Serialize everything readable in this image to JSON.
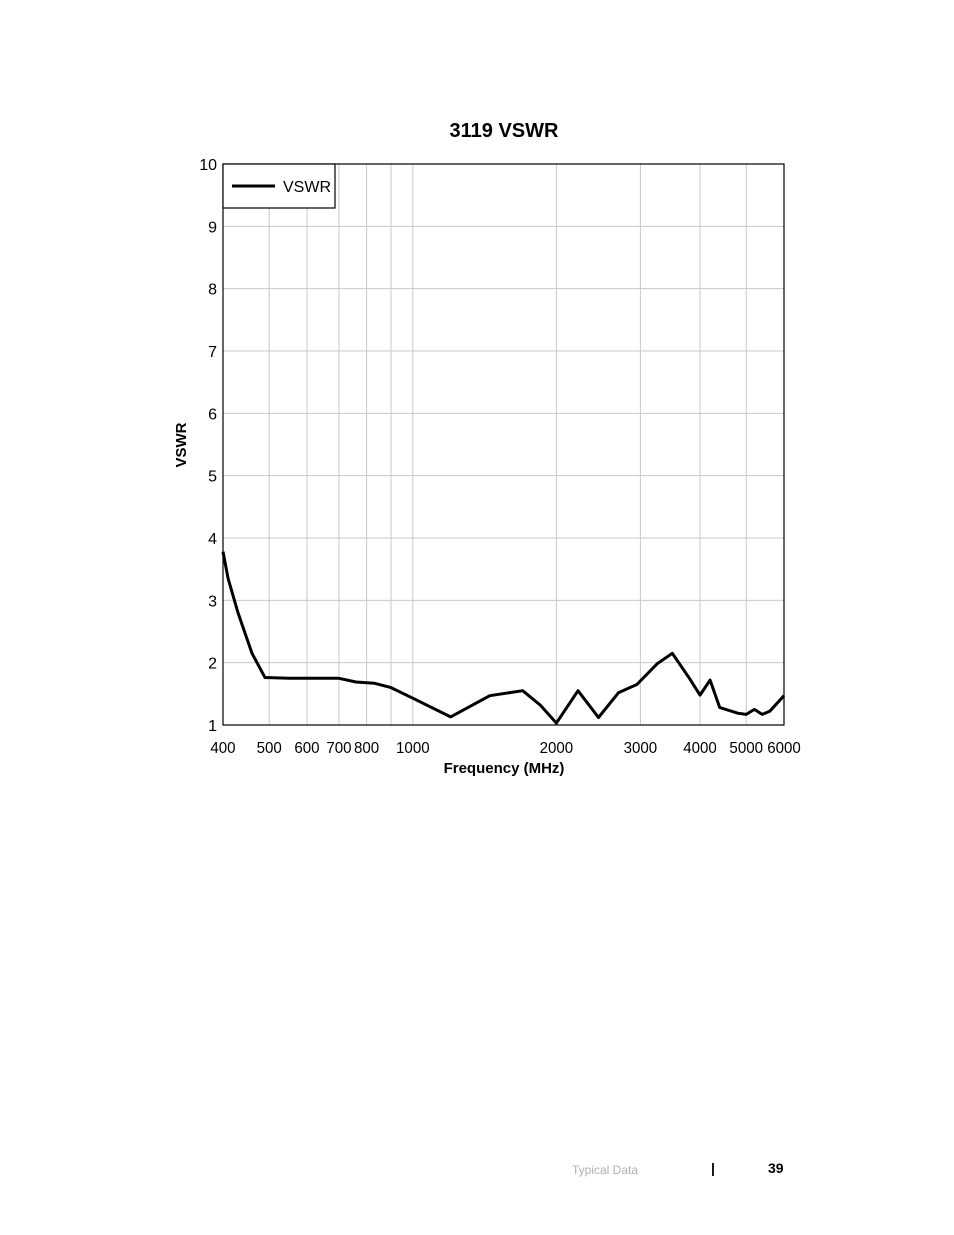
{
  "chart_data": {
    "type": "line",
    "title": "3119 VSWR",
    "xlabel": "Frequency (MHz)",
    "ylabel": "VSWR",
    "x_scale": "log",
    "xlim": [
      400,
      6000
    ],
    "ylim": [
      1,
      10
    ],
    "x_ticks": [
      400,
      500,
      600,
      700,
      800,
      1000,
      2000,
      3000,
      4000,
      5000,
      6000
    ],
    "x_tick_labels": [
      "400",
      "500",
      "600",
      "700",
      "800",
      "1000",
      "2000",
      "3000",
      "4000",
      "5000",
      "6000"
    ],
    "y_ticks": [
      1,
      2,
      3,
      4,
      5,
      6,
      7,
      8,
      9,
      10
    ],
    "y_tick_labels": [
      "1",
      "2",
      "3",
      "4",
      "5",
      "6",
      "7",
      "8",
      "9",
      "10"
    ],
    "x_grid": [
      400,
      500,
      600,
      700,
      800,
      900,
      1000,
      2000,
      3000,
      4000,
      5000,
      6000
    ],
    "grid": true,
    "legend_position": "top-left",
    "series": [
      {
        "name": "VSWR",
        "color": "#000000",
        "x": [
          400,
          410,
          430,
          460,
          490,
          500,
          550,
          650,
          700,
          760,
          830,
          900,
          1000,
          1200,
          1450,
          1700,
          1850,
          2000,
          2220,
          2450,
          2700,
          2950,
          3250,
          3500,
          3800,
          4000,
          4200,
          4400,
          4800,
          5000,
          5200,
          5400,
          5600,
          6000
        ],
        "y": [
          3.78,
          3.35,
          2.8,
          2.15,
          1.76,
          1.76,
          1.75,
          1.75,
          1.75,
          1.69,
          1.67,
          1.6,
          1.43,
          1.13,
          1.47,
          1.55,
          1.32,
          1.03,
          1.55,
          1.12,
          1.52,
          1.65,
          1.98,
          2.15,
          1.75,
          1.48,
          1.72,
          1.28,
          1.19,
          1.17,
          1.25,
          1.17,
          1.22,
          1.47
        ]
      }
    ]
  },
  "footer": {
    "section": "Typical Data",
    "separator": "|",
    "page_number": "39"
  }
}
